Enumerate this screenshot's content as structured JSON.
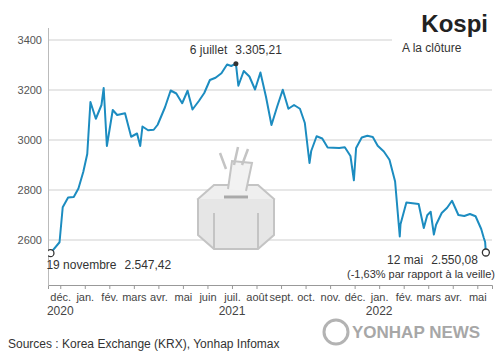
{
  "chart_data": {
    "type": "line",
    "title": "Kospi",
    "subtitle": "A la clôture",
    "source": "Sources : Korea Exchange (KRX), Yonhap Infomax",
    "logo": "YONHAP NEWS",
    "color": "#1c8cc0",
    "grid": true,
    "x": [
      -0.4,
      -0.03,
      0.1,
      0.32,
      0.55,
      0.74,
      0.94,
      1.1,
      1.23,
      1.45,
      1.68,
      1.77,
      1.9,
      2.14,
      2.32,
      2.64,
      2.89,
      3.13,
      3.26,
      3.35,
      3.58,
      3.81,
      3.97,
      4.27,
      4.5,
      4.73,
      4.97,
      5.19,
      5.39,
      5.65,
      5.87,
      6.1,
      6.33,
      6.57,
      6.8,
      6.97,
      7.16,
      7.26,
      7.48,
      7.71,
      7.94,
      8.16,
      8.39,
      8.61,
      8.84,
      9.07,
      9.3,
      9.53,
      9.77,
      9.97,
      10.16,
      10.23,
      10.45,
      10.68,
      10.9,
      11.13,
      11.37,
      11.6,
      11.83,
      11.97,
      12.06,
      12.29,
      12.52,
      12.74,
      12.94,
      13.19,
      13.42,
      13.65,
      13.84,
      13.87,
      14.11,
      14.36,
      14.61,
      14.82,
      14.96,
      15.1,
      15.23,
      15.32,
      15.55,
      15.77,
      15.97,
      16.23,
      16.47,
      16.7,
      16.93,
      17.16,
      17.26,
      17.32,
      17.35
    ],
    "values": [
      2547.42,
      2591,
      2731,
      2770,
      2772,
      2806,
      2873,
      2944,
      3152,
      3085,
      3140,
      3208,
      2976,
      3120,
      3100,
      3107,
      3013,
      3026,
      2976,
      3054,
      3039,
      3041,
      3061,
      3131,
      3198,
      3186,
      3147,
      3197,
      3122,
      3156,
      3188,
      3240,
      3249,
      3267,
      3302,
      3296,
      3305.21,
      3217,
      3276,
      3254,
      3202,
      3270,
      3171,
      3060,
      3133,
      3201,
      3125,
      3140,
      3125,
      3068,
      2908,
      2956,
      3015,
      3006,
      2970,
      2969,
      2968,
      2971,
      2936,
      2839,
      2968,
      3010,
      3017,
      3012,
      2977,
      2954,
      2921,
      2834,
      2614,
      2663,
      2750,
      2747,
      2744,
      2648,
      2699,
      2713,
      2622,
      2661,
      2708,
      2729,
      2757,
      2700,
      2696,
      2704,
      2695,
      2644,
      2610,
      2592,
      2550.08
    ],
    "xlim": [
      -0.5,
      17.6
    ],
    "xticks": [
      {
        "value": 0,
        "label": "déc."
      },
      {
        "value": 1,
        "label": "jan."
      },
      {
        "value": 2,
        "label": "fév."
      },
      {
        "value": 3,
        "label": "mars"
      },
      {
        "value": 4,
        "label": "avr."
      },
      {
        "value": 5,
        "label": "mai"
      },
      {
        "value": 6,
        "label": "juin"
      },
      {
        "value": 7,
        "label": "juil."
      },
      {
        "value": 8,
        "label": "août"
      },
      {
        "value": 9,
        "label": "sept."
      },
      {
        "value": 10,
        "label": "oct."
      },
      {
        "value": 11,
        "label": "nov."
      },
      {
        "value": 12,
        "label": "déc."
      },
      {
        "value": 13,
        "label": "jan."
      },
      {
        "value": 14,
        "label": "fév."
      },
      {
        "value": 15,
        "label": "mars"
      },
      {
        "value": 16,
        "label": "avr."
      },
      {
        "value": 17,
        "label": "mai"
      }
    ],
    "year_labels": [
      {
        "value": 0,
        "label": "2020"
      },
      {
        "value": 7,
        "label": "2021"
      },
      {
        "value": 13,
        "label": "2022"
      }
    ],
    "ylim": [
      2420,
      3450
    ],
    "yticks": [
      2600,
      2800,
      3000,
      3200,
      3400
    ],
    "annotations": [
      {
        "x": -0.4,
        "y": 2547.42,
        "date": "19 novembre",
        "label": "2.547,42",
        "marker": "circle"
      },
      {
        "x": 7.16,
        "y": 3305.21,
        "date": "6 juillet",
        "label": "3.305,21",
        "marker": "dot"
      },
      {
        "x": 17.35,
        "y": 2550.08,
        "date": "12 mai",
        "label": "2.550,08",
        "marker": "circle",
        "note": "(-1,63% par rapport à la veille)"
      }
    ]
  }
}
